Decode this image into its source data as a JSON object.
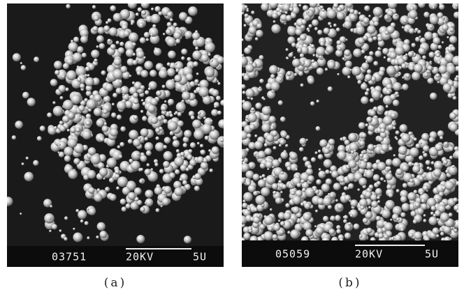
{
  "panels": [
    {
      "label": "(a)",
      "image_number": "03751",
      "voltage": "20KV",
      "scale": "5U"
    },
    {
      "label": "(b)",
      "image_number": "05059",
      "voltage": "20KV",
      "scale": "5U"
    }
  ]
}
